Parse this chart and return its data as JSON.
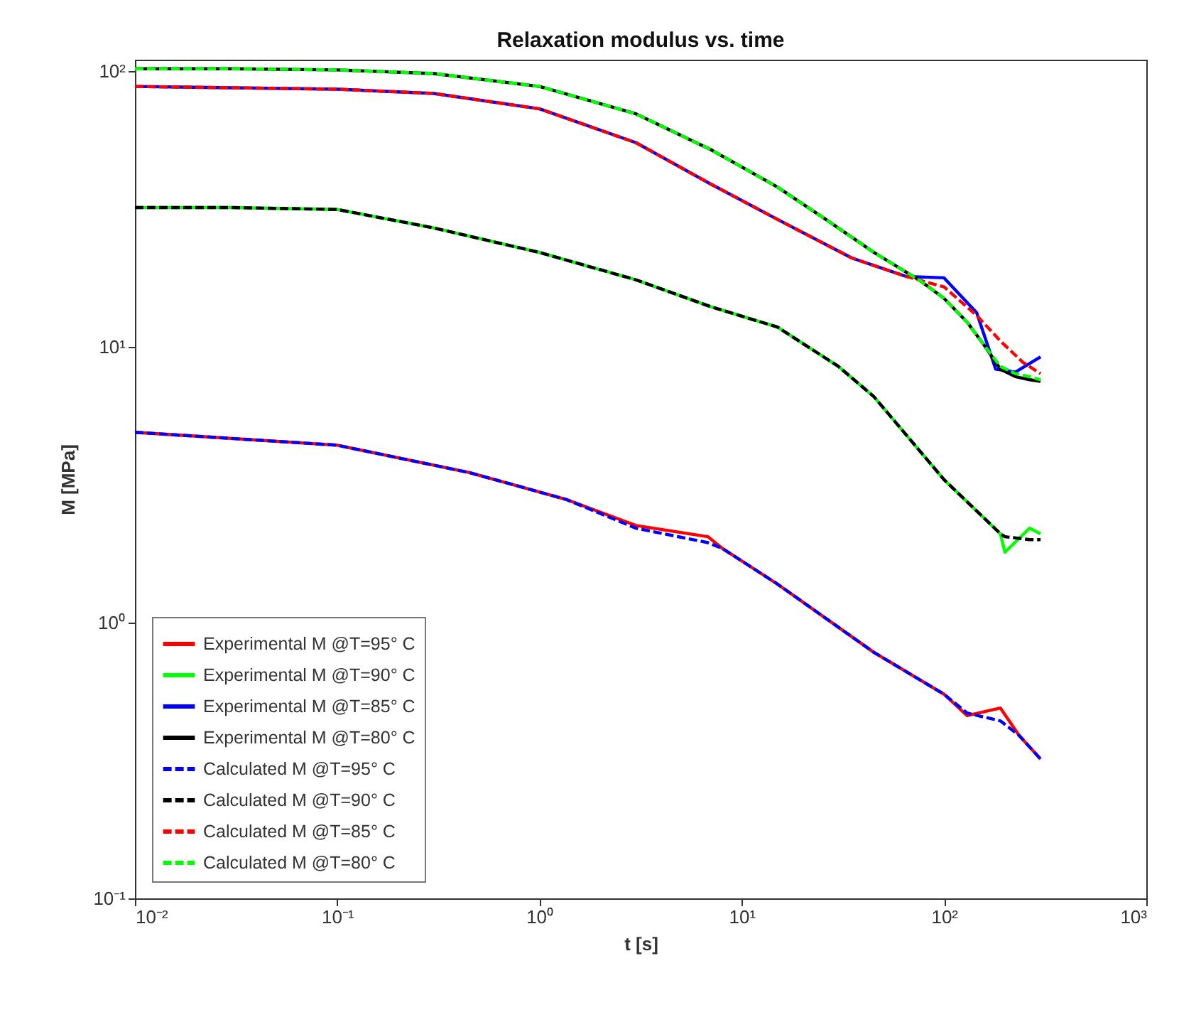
{
  "chart_data": {
    "type": "line",
    "title": "Relaxation modulus vs. time",
    "xlabel": "t [s]",
    "ylabel": "M [MPa]",
    "log": "xy",
    "grid": false,
    "legend": "bottom left",
    "marker": "none",
    "xlim": [
      0.01,
      1000
    ],
    "xticks": [
      {
        "value": 0.01,
        "label": "10⁻²"
      },
      {
        "value": 0.1,
        "label": "10⁻¹"
      },
      {
        "value": 1,
        "label": "10⁰"
      },
      {
        "value": 10,
        "label": "10¹"
      },
      {
        "value": 100,
        "label": "10²"
      },
      {
        "value": 1000,
        "label": "10³"
      }
    ],
    "ylim": [
      0.1,
      110
    ],
    "yticks": [
      {
        "value": 0.1,
        "label": "10⁻¹"
      },
      {
        "value": 1,
        "label": "10⁰"
      },
      {
        "value": 10,
        "label": "10¹"
      },
      {
        "value": 100,
        "label": "10²"
      }
    ],
    "series": [
      {
        "name": "Experimental M @T=95° C",
        "color": "#ff0000",
        "line_style": "solid",
        "x": [
          0.01,
          0.1,
          0.45,
          1.35,
          3,
          6.8,
          8,
          15,
          45,
          100,
          130,
          190,
          235,
          300
        ],
        "values": [
          4.9,
          4.4,
          3.5,
          2.8,
          2.25,
          2.05,
          1.86,
          1.38,
          0.78,
          0.55,
          0.46,
          0.49,
          0.39,
          0.32
        ]
      },
      {
        "name": "Experimental M @T=90° C",
        "color": "#00ff00",
        "line_style": "solid",
        "x": [
          0.01,
          0.03,
          0.1,
          0.3,
          1,
          3,
          7,
          15,
          30,
          45,
          100,
          190,
          200,
          265,
          300
        ],
        "values": [
          32,
          32,
          31.5,
          27,
          22,
          17.5,
          14,
          11.8,
          8.5,
          6.6,
          3.3,
          2.1,
          1.8,
          2.2,
          2.1
        ]
      },
      {
        "name": "Experimental M @T=85° C",
        "color": "#0000ff",
        "line_style": "solid",
        "x": [
          0.01,
          0.03,
          0.1,
          0.3,
          1,
          3,
          7,
          15,
          35,
          65,
          100,
          145,
          180,
          225,
          300
        ],
        "values": [
          88,
          87,
          86,
          83,
          73,
          55,
          39,
          29,
          21,
          18,
          17.8,
          13.3,
          8.3,
          8.1,
          9.2
        ]
      },
      {
        "name": "Experimental M @T=80° C",
        "color": "#000000",
        "line_style": "solid",
        "x": [
          0.01,
          0.03,
          0.1,
          0.3,
          1,
          3,
          7,
          15,
          26,
          45,
          76,
          100,
          130,
          160,
          190,
          225,
          265,
          300
        ],
        "values": [
          102,
          102,
          101,
          98,
          88,
          70,
          52,
          38,
          29,
          22,
          17.4,
          15,
          12.3,
          10,
          8.3,
          7.8,
          7.6,
          7.5
        ]
      },
      {
        "name": "Calculated M @T=95° C",
        "color": "#0000ff",
        "line_style": "dashed",
        "x": [
          0.01,
          0.1,
          0.45,
          1.35,
          3,
          6.8,
          8,
          15,
          45,
          100,
          130,
          190,
          235,
          300
        ],
        "values": [
          4.9,
          4.4,
          3.5,
          2.8,
          2.2,
          1.95,
          1.86,
          1.38,
          0.78,
          0.55,
          0.47,
          0.44,
          0.39,
          0.32
        ]
      },
      {
        "name": "Calculated M @T=90° C",
        "color": "#000000",
        "line_style": "dashed",
        "x": [
          0.01,
          0.03,
          0.1,
          0.3,
          1,
          3,
          7,
          15,
          30,
          45,
          100,
          190,
          200,
          265,
          300
        ],
        "values": [
          32,
          32,
          31.5,
          27,
          22,
          17.5,
          14,
          11.8,
          8.5,
          6.6,
          3.3,
          2.1,
          2.05,
          2,
          2
        ]
      },
      {
        "name": "Calculated M @T=85° C",
        "color": "#ff0000",
        "line_style": "dashed",
        "x": [
          0.01,
          0.03,
          0.1,
          0.3,
          1,
          3,
          7,
          15,
          35,
          65,
          100,
          145,
          190,
          245,
          300
        ],
        "values": [
          88,
          87,
          86,
          83,
          73,
          55,
          39,
          29,
          21,
          18,
          16.5,
          13,
          10.5,
          8.8,
          8
        ]
      },
      {
        "name": "Calculated M @T=80° C",
        "color": "#00ff00",
        "line_style": "dashed",
        "x": [
          0.01,
          0.03,
          0.1,
          0.3,
          1,
          3,
          7,
          15,
          26,
          45,
          76,
          100,
          130,
          160,
          190,
          225,
          265,
          300
        ],
        "values": [
          102,
          102,
          101,
          98,
          88,
          70,
          52,
          38,
          29,
          22,
          17.4,
          15,
          12.3,
          10,
          8.5,
          8,
          7.8,
          7.6
        ]
      }
    ]
  }
}
